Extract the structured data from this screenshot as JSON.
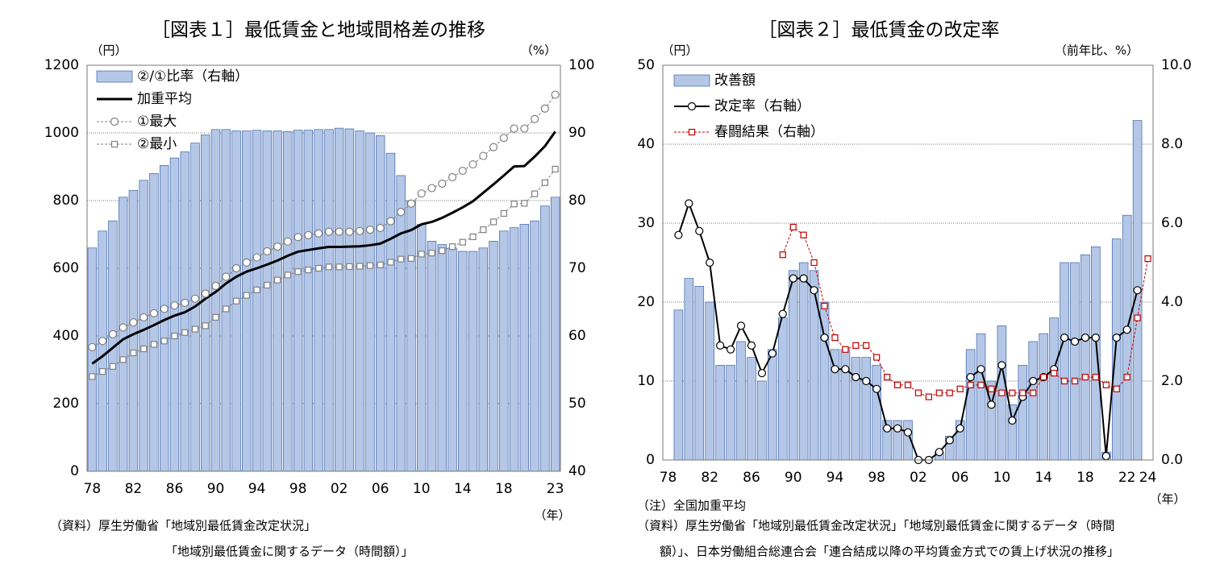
{
  "chart_data": [
    {
      "type": "combo",
      "title": "［図表１］最低賃金と地域間格差の推移",
      "y_unit": "（円）",
      "y2_unit": "（%）",
      "x_unit": "（年）",
      "notes": [
        "（資料）厚生労働省「地域別最低賃金改定状況」",
        "「地域別最低賃金に関するデータ（時間額）」"
      ],
      "categories": [
        "78",
        null,
        null,
        null,
        "82",
        null,
        null,
        null,
        "86",
        null,
        null,
        null,
        "90",
        null,
        null,
        null,
        "94",
        null,
        null,
        null,
        "98",
        null,
        null,
        null,
        "02",
        null,
        null,
        null,
        "06",
        null,
        null,
        null,
        "10",
        null,
        null,
        null,
        "14",
        null,
        null,
        null,
        "18",
        null,
        null,
        null,
        null,
        "23"
      ],
      "ylim": [
        0,
        1200
      ],
      "yticks": [
        0,
        200,
        400,
        600,
        800,
        1000,
        1200
      ],
      "y2lim": [
        40,
        100
      ],
      "y2ticks": [
        40,
        50,
        60,
        70,
        80,
        90,
        100
      ],
      "grid": true,
      "legend": "upper left",
      "series": [
        {
          "name": "②/①比率（右軸）",
          "type": "bar",
          "axis": "y2",
          "color": "#b4c7e7",
          "edge": "#3f64a8",
          "values": [
            73,
            75.5,
            77,
            80.5,
            81.5,
            83,
            84,
            85.2,
            86.3,
            87.2,
            88.5,
            89.7,
            90.5,
            90.5,
            90.3,
            90.3,
            90.4,
            90.3,
            90.3,
            90.2,
            90.4,
            90.4,
            90.5,
            90.5,
            90.7,
            90.6,
            90.3,
            90.0,
            89.6,
            87.0,
            83.7,
            80.0,
            76.5,
            74.0,
            73.5,
            73.0,
            72.5,
            72.5,
            73.0,
            74.0,
            75.5,
            76.0,
            76.5,
            77.0,
            79.2,
            80.5
          ]
        },
        {
          "name": "加重平均",
          "type": "line",
          "color": "#000000",
          "width": 3,
          "dash": false,
          "marker": "none",
          "values": [
            318,
            340,
            365,
            390,
            405,
            418,
            432,
            447,
            460,
            470,
            487,
            510,
            530,
            555,
            575,
            590,
            600,
            611,
            623,
            637,
            649,
            654,
            659,
            663,
            663,
            664,
            665,
            668,
            673,
            687,
            703,
            713,
            730,
            737,
            749,
            764,
            780,
            798,
            823,
            848,
            874,
            901,
            902,
            930,
            961,
            1004
          ]
        },
        {
          "name": "①最大",
          "type": "line",
          "color": "#808080",
          "width": 1,
          "dash": true,
          "marker": "circle",
          "values": [
            367,
            385,
            405,
            425,
            440,
            455,
            467,
            480,
            490,
            498,
            510,
            525,
            548,
            575,
            600,
            617,
            632,
            650,
            664,
            679,
            692,
            698,
            703,
            708,
            708,
            708,
            710,
            714,
            719,
            739,
            766,
            791,
            821,
            837,
            850,
            869,
            888,
            907,
            932,
            958,
            985,
            1013,
            1013,
            1041,
            1072,
            1113
          ]
        },
        {
          "name": "②最小",
          "type": "line",
          "color": "#808080",
          "width": 1,
          "dash": true,
          "marker": "square",
          "values": [
            280,
            295,
            310,
            330,
            350,
            362,
            375,
            385,
            400,
            410,
            420,
            430,
            455,
            480,
            503,
            520,
            536,
            550,
            565,
            580,
            590,
            595,
            600,
            604,
            604,
            605,
            606,
            608,
            610,
            618,
            627,
            629,
            642,
            645,
            652,
            664,
            677,
            693,
            714,
            737,
            762,
            790,
            792,
            820,
            853,
            893
          ]
        }
      ]
    },
    {
      "type": "combo",
      "title": "［図表２］最低賃金の改定率",
      "y_unit": "（円）",
      "y2_unit": "（前年比、%）",
      "x_unit": "（年）",
      "notes": [
        "（注）全国加重平均",
        "（資料）厚生労働省「地域別最低賃金改定状況」「地域別最低賃金に関するデータ（時間",
        "額）」、日本労働組合総連合会「連合結成以降の平均賃金方式での賃上げ状況の推移」"
      ],
      "categories": [
        "78",
        null,
        null,
        null,
        "82",
        null,
        null,
        null,
        "86",
        null,
        null,
        null,
        "90",
        null,
        null,
        null,
        "94",
        null,
        null,
        null,
        "98",
        null,
        null,
        null,
        "02",
        null,
        null,
        null,
        "06",
        null,
        null,
        null,
        "10",
        null,
        null,
        null,
        "14",
        null,
        null,
        null,
        "18",
        null,
        null,
        null,
        "22",
        null,
        "24"
      ],
      "ylim": [
        0,
        50
      ],
      "yticks": [
        0,
        10,
        20,
        30,
        40,
        50
      ],
      "y2lim": [
        0,
        10
      ],
      "y2ticks": [
        {
          "value": 0,
          "label": "0.0"
        },
        {
          "value": 2,
          "label": "2.0"
        },
        {
          "value": 4,
          "label": "4.0"
        },
        {
          "value": 6,
          "label": "6.0"
        },
        {
          "value": 8,
          "label": "8.0"
        },
        {
          "value": 10,
          "label": "10.0"
        }
      ],
      "grid": true,
      "legend": "upper left",
      "series": [
        {
          "name": "改善額",
          "type": "bar",
          "color": "#b4c7e7",
          "edge": "#3f64a8",
          "values": [
            null,
            19,
            23,
            22,
            20,
            12,
            12,
            15,
            13,
            10,
            14,
            18,
            24,
            25,
            24,
            20,
            14,
            14,
            13,
            13,
            12,
            5,
            5,
            5,
            0,
            0,
            1,
            3,
            5,
            14,
            16,
            10,
            17,
            7,
            12,
            15,
            16,
            18,
            25,
            25,
            26,
            27,
            1,
            28,
            31,
            43,
            null
          ]
        },
        {
          "name": "改定率（右軸）",
          "type": "line",
          "axis": "y2",
          "color": "#000000",
          "width": 2,
          "dash": false,
          "marker": "circle",
          "values": [
            null,
            5.7,
            6.5,
            5.8,
            5.0,
            2.9,
            2.8,
            3.4,
            2.9,
            2.2,
            2.7,
            3.7,
            4.6,
            4.6,
            4.3,
            3.1,
            2.3,
            2.3,
            2.1,
            2.0,
            1.8,
            0.8,
            0.8,
            0.7,
            0.0,
            0.0,
            0.2,
            0.5,
            0.8,
            2.1,
            2.3,
            1.4,
            2.4,
            1.0,
            1.6,
            2.0,
            2.1,
            2.3,
            3.1,
            3.0,
            3.1,
            3.1,
            0.1,
            3.1,
            3.3,
            4.3,
            null
          ]
        },
        {
          "name": "春闘結果（右軸）",
          "type": "line",
          "axis": "y2",
          "color": "#c00000",
          "width": 1,
          "dash": true,
          "marker": "square",
          "values": [
            null,
            null,
            null,
            null,
            null,
            null,
            null,
            null,
            null,
            null,
            null,
            5.2,
            5.9,
            5.7,
            5.0,
            3.9,
            3.1,
            2.8,
            2.9,
            2.9,
            2.6,
            2.1,
            1.9,
            1.9,
            1.7,
            1.6,
            1.7,
            1.7,
            1.8,
            1.9,
            1.9,
            1.8,
            1.7,
            1.7,
            1.7,
            1.7,
            2.1,
            2.2,
            2.0,
            2.0,
            2.1,
            2.1,
            1.9,
            1.8,
            2.1,
            3.6,
            5.1
          ]
        }
      ]
    }
  ]
}
